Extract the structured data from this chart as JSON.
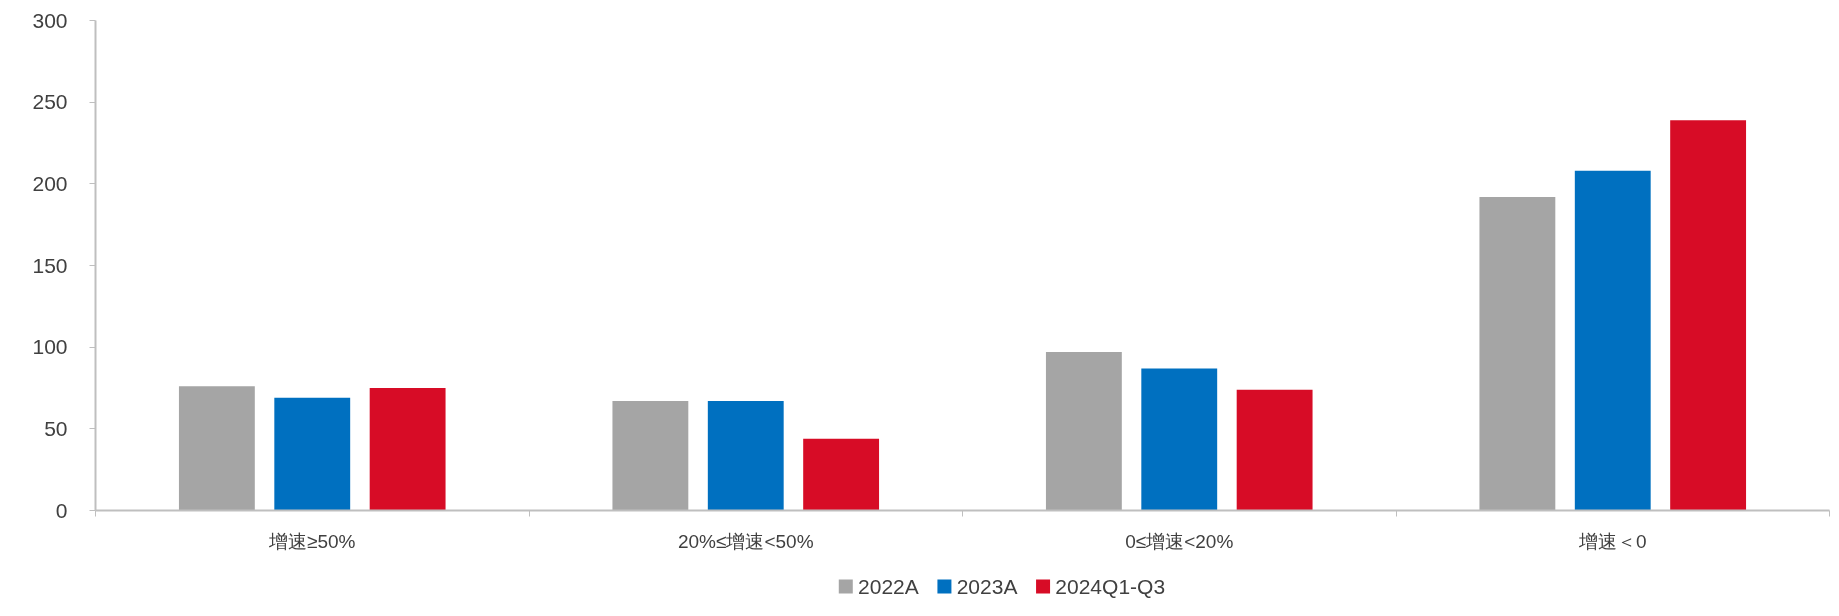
{
  "chart_data": {
    "type": "bar",
    "categories": [
      "增速≥50%",
      "20%≤增速<50%",
      "0≤增速<20%",
      "增速＜0"
    ],
    "series": [
      {
        "name": "2022A",
        "color": "#a5a5a5",
        "values": [
          76,
          67,
          97,
          192
        ]
      },
      {
        "name": "2023A",
        "color": "#0070c0",
        "values": [
          69,
          67,
          87,
          208
        ]
      },
      {
        "name": "2024Q1-Q3",
        "color": "#d70c26",
        "values": [
          75,
          44,
          74,
          239
        ]
      }
    ],
    "ylim": [
      0,
      300
    ],
    "yticks": [
      0,
      50,
      100,
      150,
      200,
      250,
      300
    ],
    "grid": false,
    "legend": "bottom"
  }
}
